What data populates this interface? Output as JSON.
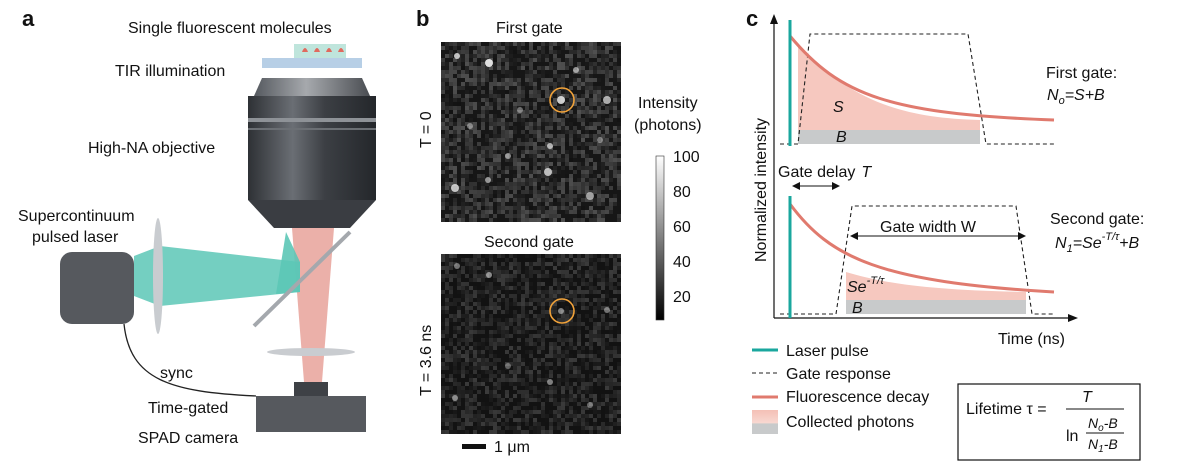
{
  "panel_a": {
    "letter": "a",
    "molecules_label": "Single fluorescent molecules",
    "tir_label": "TIR illumination",
    "objective_label": "High-NA objective",
    "laser_label_line1": "Supercontinuum",
    "laser_label_line2": "pulsed laser",
    "sync_label": "sync",
    "camera_label_line1": "Time-gated",
    "camera_label_line2": "SPAD camera",
    "colors": {
      "laser_beam": "#5cc7b6",
      "emission_beam": "#e8a29a",
      "objective": "#3c3f44"
    }
  },
  "panel_b": {
    "letter": "b",
    "top_title": "First gate",
    "bottom_title": "Second gate",
    "top_gate_label": "T = 0",
    "bottom_gate_label": "T = 3.6 ns",
    "colorbar_title_line1": "Intensity",
    "colorbar_title_line2": "(photons)",
    "colorbar_ticks": [
      "100",
      "80",
      "60",
      "40",
      "20"
    ],
    "scalebar_label": "1 μm",
    "highlight_color": "#f0a23a"
  },
  "panel_c": {
    "letter": "c",
    "y_axis_label": "Normalized intensity",
    "x_axis_label": "Time (ns)",
    "gate_delay_label": "Gate delay",
    "gate_delay_symbol": "T",
    "gate_width_label": "Gate width W",
    "first_gate_title": "First gate:",
    "first_gate_eq_lhs": "N",
    "first_gate_eq_sub": "o",
    "first_gate_eq_rhs": "=S+B",
    "second_gate_title": "Second gate:",
    "second_gate_eq_lhs": "N",
    "second_gate_eq_sub": "1",
    "second_gate_eq_mid": "=Se",
    "second_gate_eq_sup": "-T/τ",
    "second_gate_eq_rhs": "+B",
    "top_s_label": "S",
    "top_b_label": "B",
    "bottom_s_label": "Se",
    "bottom_s_sup": "-T/τ",
    "bottom_b_label": "B",
    "legend": [
      {
        "label": "Laser pulse",
        "icon": "teal-line"
      },
      {
        "label": "Gate response",
        "icon": "dashed-line"
      },
      {
        "label": "Fluorescence decay",
        "icon": "red-line"
      },
      {
        "label": "Collected photons",
        "icon": "filled-area"
      }
    ],
    "lifetime_label": "Lifetime τ =",
    "lifetime_numerator": "T",
    "lifetime_ln": "ln",
    "lifetime_frac_top": "N",
    "lifetime_frac_top_sub": "o",
    "lifetime_frac_top_rest": "-B",
    "lifetime_frac_bottom": "N",
    "lifetime_frac_bottom_sub": "1",
    "lifetime_frac_bottom_rest": "-B",
    "colors": {
      "laser": "#1aa79e",
      "decay": "#e07a6e",
      "signal_fill": "#f6c8bf",
      "background_fill": "#c8cacb"
    }
  }
}
